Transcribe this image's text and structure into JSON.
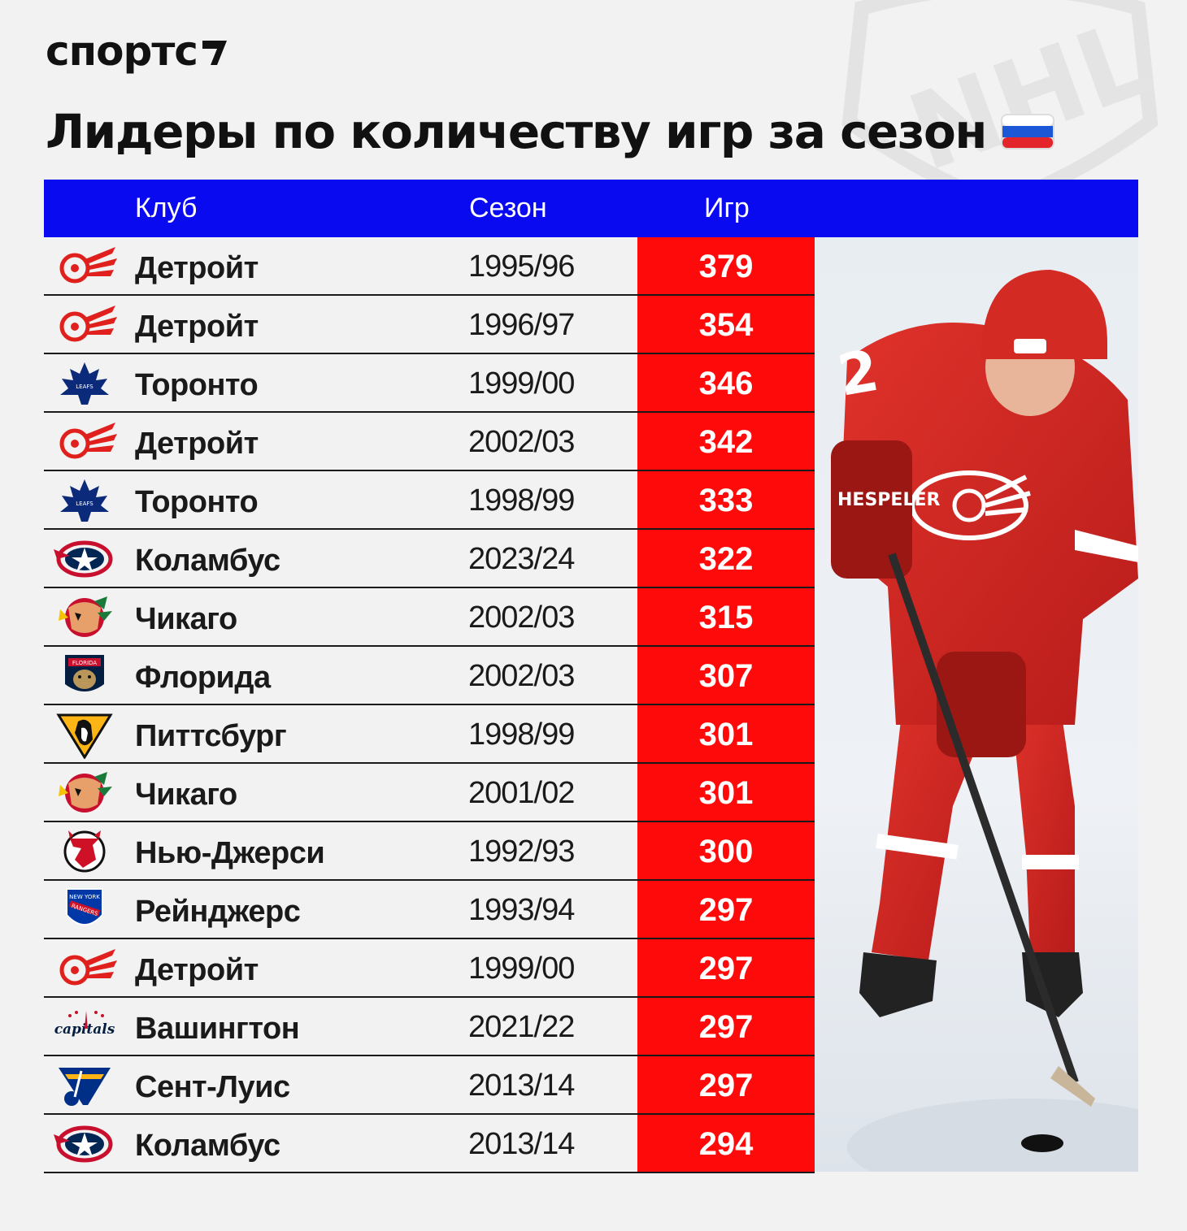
{
  "brand": {
    "name": "спортс"
  },
  "title": {
    "text": "Лидеры по количеству игр за сезон",
    "flag": "russia-flag"
  },
  "header": {
    "club": "Клуб",
    "season": "Сезон",
    "games": "Игр"
  },
  "colors": {
    "header_bg": "#0a0af0",
    "games_bg": "#ff0a0a",
    "background": "#f2f2f2"
  },
  "rows": [
    {
      "logo": "detroit-red-wings-logo",
      "club": "Детройт",
      "season": "1995/96",
      "games": "379"
    },
    {
      "logo": "detroit-red-wings-logo",
      "club": "Детройт",
      "season": "1996/97",
      "games": "354"
    },
    {
      "logo": "toronto-maple-leafs-logo",
      "club": "Торонто",
      "season": "1999/00",
      "games": "346"
    },
    {
      "logo": "detroit-red-wings-logo",
      "club": "Детройт",
      "season": "2002/03",
      "games": "342"
    },
    {
      "logo": "toronto-maple-leafs-logo",
      "club": "Торонто",
      "season": "1998/99",
      "games": "333"
    },
    {
      "logo": "columbus-blue-jackets-logo",
      "club": "Коламбус",
      "season": "2023/24",
      "games": "322"
    },
    {
      "logo": "chicago-blackhawks-logo",
      "club": "Чикаго",
      "season": "2002/03",
      "games": "315"
    },
    {
      "logo": "florida-panthers-logo",
      "club": "Флорида",
      "season": "2002/03",
      "games": "307"
    },
    {
      "logo": "pittsburgh-penguins-logo",
      "club": "Питтсбург",
      "season": "1998/99",
      "games": "301"
    },
    {
      "logo": "chicago-blackhawks-logo",
      "club": "Чикаго",
      "season": "2001/02",
      "games": "301"
    },
    {
      "logo": "new-jersey-devils-logo",
      "club": "Нью-Джерси",
      "season": "1992/93",
      "games": "300"
    },
    {
      "logo": "new-york-rangers-logo",
      "club": "Рейнджерс",
      "season": "1993/94",
      "games": "297"
    },
    {
      "logo": "detroit-red-wings-logo",
      "club": "Детройт",
      "season": "1999/00",
      "games": "297"
    },
    {
      "logo": "washington-capitals-logo",
      "club": "Вашингтон",
      "season": "2021/22",
      "games": "297"
    },
    {
      "logo": "st-louis-blues-logo",
      "club": "Сент-Луис",
      "season": "2013/14",
      "games": "297"
    },
    {
      "logo": "columbus-blue-jackets-logo",
      "club": "Коламбус",
      "season": "2013/14",
      "games": "294"
    }
  ],
  "photo": {
    "subject": "hockey-player-photo"
  }
}
